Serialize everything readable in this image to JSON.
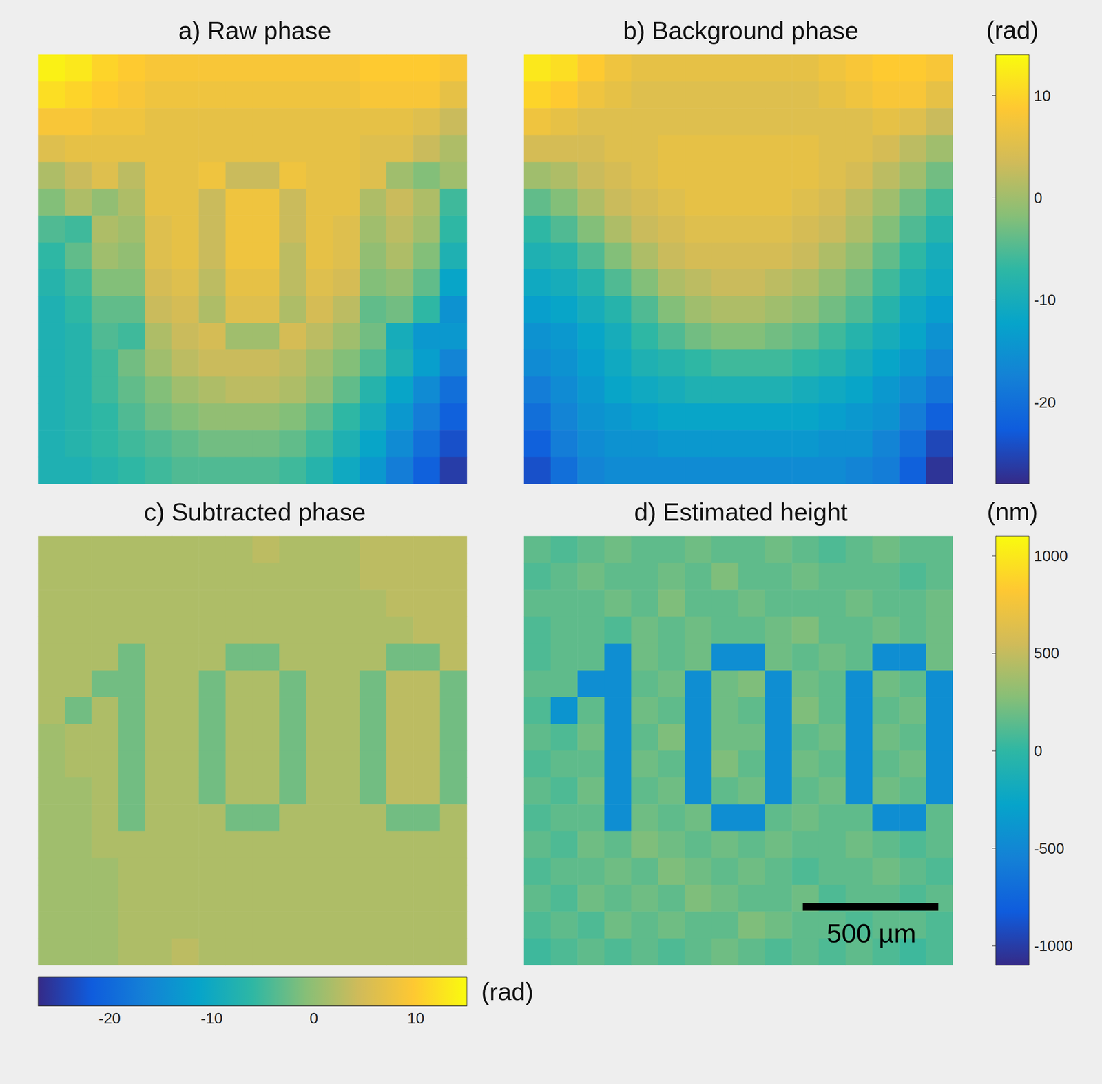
{
  "chart_data": [
    {
      "type": "heatmap",
      "title": "a) Raw phase",
      "tick_labels": false,
      "color_range": [
        -28,
        14
      ],
      "cells": [
        [
          13,
          12,
          10,
          9,
          8,
          8,
          8,
          8,
          8,
          8,
          8,
          8,
          9,
          9,
          9,
          8
        ],
        [
          11,
          10,
          9,
          8,
          7,
          7,
          7,
          7,
          7,
          7,
          7,
          7,
          8,
          8,
          8,
          6
        ],
        [
          8,
          8,
          7,
          7,
          6,
          6,
          6,
          6,
          6,
          6,
          6,
          6,
          6,
          6,
          5,
          3
        ],
        [
          5,
          6,
          6,
          6,
          6,
          6,
          6,
          6,
          6,
          6,
          6,
          6,
          5,
          5,
          3,
          1
        ],
        [
          1,
          3,
          5,
          2,
          6,
          6,
          7,
          3,
          3,
          7,
          6,
          6,
          5,
          0,
          -2,
          0
        ],
        [
          -2,
          1,
          -1,
          1,
          6,
          6,
          3,
          7,
          7,
          3,
          6,
          6,
          1,
          3,
          1,
          -6
        ],
        [
          -5,
          -6,
          1,
          0,
          5,
          6,
          3,
          7,
          7,
          3,
          6,
          5,
          0,
          2,
          0,
          -7
        ],
        [
          -7,
          -4,
          0,
          -1,
          5,
          6,
          3,
          7,
          7,
          2,
          6,
          5,
          -1,
          1,
          -2,
          -9
        ],
        [
          -8,
          -6,
          -2,
          -2,
          4,
          5,
          2,
          6,
          6,
          2,
          5,
          4,
          -2,
          -1,
          -4,
          -12
        ],
        [
          -9,
          -7,
          -4,
          -4,
          3,
          4,
          1,
          5,
          5,
          1,
          4,
          2,
          -4,
          -3,
          -7,
          -15
        ],
        [
          -9,
          -8,
          -5,
          -6,
          1,
          3,
          4,
          0,
          0,
          4,
          2,
          0,
          -3,
          -10,
          -14,
          -14
        ],
        [
          -9,
          -8,
          -6,
          -3,
          0,
          2,
          3,
          3,
          3,
          2,
          0,
          -2,
          -5,
          -9,
          -13,
          -17
        ],
        [
          -9,
          -8,
          -6,
          -4,
          -2,
          0,
          1,
          2,
          2,
          1,
          -1,
          -4,
          -8,
          -12,
          -16,
          -20
        ],
        [
          -9,
          -8,
          -7,
          -5,
          -3,
          -2,
          -1,
          -1,
          -1,
          -2,
          -4,
          -7,
          -10,
          -14,
          -18,
          -22
        ],
        [
          -9,
          -8,
          -7,
          -6,
          -5,
          -4,
          -3,
          -3,
          -3,
          -4,
          -6,
          -9,
          -12,
          -16,
          -20,
          -24
        ],
        [
          -9,
          -9,
          -8,
          -7,
          -6,
          -5,
          -5,
          -5,
          -5,
          -6,
          -8,
          -11,
          -14,
          -18,
          -22,
          -26
        ]
      ]
    },
    {
      "type": "heatmap",
      "title": "b) Background phase",
      "tick_labels": false,
      "color_range": [
        -28,
        14
      ],
      "colorbar": {
        "label": "(rad)",
        "ticks": [
          -20,
          -10,
          0,
          10
        ]
      },
      "cells": [
        [
          12,
          11,
          9,
          7,
          6,
          6,
          6,
          6,
          6,
          6,
          6,
          7,
          8,
          9,
          9,
          8
        ],
        [
          10,
          9,
          7,
          6,
          5,
          5,
          5,
          5,
          5,
          5,
          5,
          6,
          7,
          8,
          8,
          6
        ],
        [
          7,
          6,
          5,
          5,
          5,
          5,
          5,
          5,
          5,
          5,
          5,
          5,
          5,
          6,
          5,
          3
        ],
        [
          4,
          4,
          4,
          5,
          5,
          6,
          6,
          6,
          6,
          6,
          6,
          5,
          5,
          4,
          2,
          0
        ],
        [
          0,
          1,
          3,
          4,
          5,
          6,
          6,
          6,
          6,
          6,
          6,
          5,
          4,
          2,
          0,
          -3
        ],
        [
          -4,
          -2,
          1,
          3,
          4,
          5,
          6,
          6,
          6,
          6,
          5,
          4,
          2,
          0,
          -3,
          -6
        ],
        [
          -7,
          -5,
          -2,
          1,
          3,
          4,
          5,
          5,
          5,
          5,
          4,
          3,
          1,
          -2,
          -5,
          -8
        ],
        [
          -9,
          -8,
          -5,
          -2,
          1,
          3,
          4,
          4,
          4,
          4,
          3,
          1,
          -1,
          -4,
          -7,
          -10
        ],
        [
          -11,
          -10,
          -8,
          -5,
          -2,
          1,
          2,
          3,
          3,
          2,
          1,
          -1,
          -3,
          -6,
          -9,
          -11
        ],
        [
          -13,
          -12,
          -10,
          -8,
          -5,
          -2,
          0,
          1,
          1,
          0,
          -1,
          -3,
          -5,
          -8,
          -11,
          -13
        ],
        [
          -15,
          -14,
          -12,
          -10,
          -7,
          -5,
          -3,
          -2,
          -2,
          -3,
          -4,
          -6,
          -8,
          -10,
          -12,
          -15
        ],
        [
          -16,
          -15,
          -13,
          -11,
          -9,
          -8,
          -7,
          -6,
          -6,
          -6,
          -7,
          -8,
          -10,
          -12,
          -14,
          -17
        ],
        [
          -18,
          -16,
          -14,
          -12,
          -11,
          -10,
          -9,
          -9,
          -9,
          -9,
          -10,
          -11,
          -12,
          -14,
          -16,
          -19
        ],
        [
          -20,
          -17,
          -15,
          -14,
          -13,
          -12,
          -12,
          -12,
          -12,
          -12,
          -12,
          -13,
          -14,
          -15,
          -18,
          -22
        ],
        [
          -22,
          -18,
          -16,
          -15,
          -15,
          -14,
          -14,
          -14,
          -14,
          -14,
          -14,
          -15,
          -15,
          -17,
          -20,
          -25
        ],
        [
          -24,
          -20,
          -17,
          -16,
          -16,
          -16,
          -16,
          -16,
          -16,
          -16,
          -16,
          -16,
          -17,
          -18,
          -22,
          -27
        ]
      ]
    },
    {
      "type": "heatmap",
      "title": "c) Subtracted phase",
      "tick_labels": false,
      "color_range": [
        -27,
        15
      ],
      "colorbar": {
        "label": "(rad)",
        "ticks": [
          -20,
          -10,
          0,
          10
        ],
        "orientation": "horizontal"
      },
      "cells": [
        [
          2,
          2,
          2,
          2,
          2,
          2,
          2,
          2,
          3,
          2,
          2,
          2,
          3,
          3,
          3,
          3
        ],
        [
          2,
          2,
          2,
          2,
          2,
          2,
          2,
          2,
          2,
          2,
          2,
          2,
          3,
          3,
          3,
          3
        ],
        [
          2,
          2,
          2,
          2,
          2,
          2,
          2,
          2,
          2,
          2,
          2,
          2,
          2,
          3,
          3,
          3
        ],
        [
          2,
          2,
          2,
          2,
          2,
          2,
          2,
          2,
          2,
          2,
          2,
          2,
          2,
          2,
          3,
          3
        ],
        [
          2,
          2,
          2,
          -2,
          2,
          2,
          2,
          -2,
          -2,
          2,
          2,
          2,
          2,
          -2,
          -2,
          3
        ],
        [
          2,
          2,
          -2,
          -2,
          2,
          2,
          -2,
          2,
          2,
          -2,
          2,
          2,
          -2,
          3,
          3,
          -2
        ],
        [
          2,
          -2,
          2,
          -2,
          2,
          2,
          -2,
          2,
          2,
          -2,
          2,
          2,
          -2,
          3,
          3,
          -2
        ],
        [
          1,
          2,
          2,
          -2,
          2,
          2,
          -2,
          2,
          2,
          -2,
          2,
          2,
          -2,
          3,
          3,
          -2
        ],
        [
          1,
          2,
          2,
          -2,
          2,
          2,
          -2,
          2,
          2,
          -2,
          2,
          2,
          -2,
          3,
          3,
          -2
        ],
        [
          1,
          1,
          2,
          -2,
          2,
          2,
          -2,
          2,
          2,
          -2,
          2,
          2,
          -2,
          3,
          3,
          -2
        ],
        [
          1,
          1,
          2,
          -2,
          2,
          2,
          2,
          -2,
          -2,
          2,
          2,
          2,
          2,
          -2,
          -2,
          2
        ],
        [
          1,
          1,
          2,
          2,
          2,
          2,
          2,
          2,
          2,
          2,
          2,
          2,
          2,
          2,
          2,
          2
        ],
        [
          1,
          1,
          1,
          2,
          2,
          2,
          2,
          2,
          2,
          2,
          2,
          2,
          2,
          2,
          2,
          2
        ],
        [
          1,
          1,
          1,
          2,
          2,
          2,
          2,
          2,
          2,
          2,
          2,
          2,
          2,
          2,
          2,
          2
        ],
        [
          1,
          1,
          1,
          2,
          2,
          2,
          2,
          2,
          2,
          2,
          2,
          2,
          2,
          2,
          2,
          2
        ],
        [
          1,
          1,
          1,
          2,
          2,
          3,
          2,
          2,
          2,
          2,
          2,
          2,
          2,
          2,
          2,
          2
        ]
      ]
    },
    {
      "type": "heatmap",
      "title": "d) Estimated height",
      "tick_labels": false,
      "color_range": [
        -1100,
        1100
      ],
      "colorbar": {
        "label": "(nm)",
        "ticks": [
          -1000,
          -500,
          0,
          500,
          1000
        ]
      },
      "scale_bar": "500 µm",
      "cells": [
        [
          150,
          100,
          150,
          200,
          150,
          150,
          200,
          150,
          150,
          200,
          150,
          100,
          150,
          200,
          150,
          150
        ],
        [
          100,
          150,
          200,
          150,
          150,
          200,
          150,
          250,
          150,
          150,
          200,
          150,
          150,
          150,
          100,
          150
        ],
        [
          150,
          150,
          150,
          200,
          150,
          250,
          150,
          150,
          200,
          150,
          150,
          150,
          200,
          150,
          150,
          200
        ],
        [
          100,
          150,
          150,
          100,
          200,
          150,
          200,
          150,
          150,
          200,
          250,
          150,
          150,
          200,
          150,
          200
        ],
        [
          100,
          150,
          150,
          -450,
          200,
          150,
          200,
          -450,
          -450,
          200,
          150,
          200,
          150,
          -450,
          -450,
          200
        ],
        [
          150,
          150,
          -450,
          -450,
          150,
          200,
          -450,
          200,
          250,
          -450,
          200,
          150,
          -450,
          200,
          150,
          -450
        ],
        [
          100,
          -400,
          150,
          -450,
          200,
          150,
          -450,
          200,
          150,
          -450,
          250,
          150,
          -450,
          150,
          200,
          -450
        ],
        [
          150,
          100,
          200,
          -450,
          150,
          250,
          -450,
          200,
          200,
          -450,
          150,
          200,
          -450,
          200,
          150,
          -450
        ],
        [
          100,
          150,
          150,
          -450,
          200,
          150,
          -450,
          250,
          150,
          -450,
          200,
          150,
          -450,
          150,
          200,
          -450
        ],
        [
          150,
          100,
          200,
          -450,
          150,
          200,
          -450,
          150,
          200,
          -450,
          150,
          200,
          -450,
          200,
          150,
          -450
        ],
        [
          100,
          150,
          150,
          -450,
          200,
          150,
          200,
          -450,
          -450,
          150,
          200,
          150,
          150,
          -450,
          -450,
          150
        ],
        [
          150,
          100,
          200,
          150,
          250,
          200,
          150,
          200,
          150,
          200,
          150,
          150,
          200,
          150,
          100,
          150
        ],
        [
          100,
          150,
          150,
          200,
          150,
          250,
          200,
          150,
          200,
          150,
          100,
          150,
          150,
          200,
          150,
          100
        ],
        [
          150,
          100,
          200,
          150,
          200,
          150,
          250,
          200,
          150,
          150,
          200,
          100,
          150,
          150,
          100,
          150
        ],
        [
          100,
          150,
          100,
          200,
          150,
          200,
          150,
          150,
          250,
          200,
          150,
          150,
          100,
          150,
          150,
          100
        ],
        [
          50,
          100,
          150,
          100,
          150,
          100,
          150,
          200,
          150,
          100,
          150,
          100,
          150,
          100,
          50,
          100
        ]
      ]
    }
  ]
}
